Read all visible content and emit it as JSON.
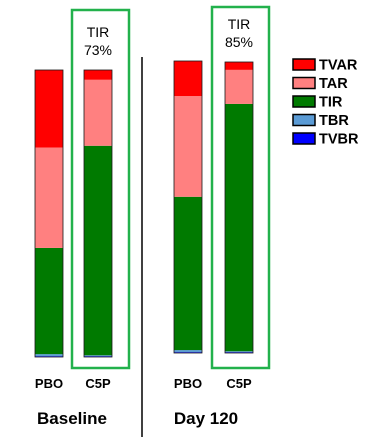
{
  "chart_data": {
    "type": "bar",
    "stacked": true,
    "title": "",
    "xlabel": "",
    "ylabel": "",
    "ylim": [
      0,
      100
    ],
    "grid": false,
    "legend_position": "right",
    "groups": [
      {
        "label": "Baseline",
        "categories": [
          "PBO",
          "C5P"
        ]
      },
      {
        "label": "Day 120",
        "categories": [
          "PBO",
          "C5P"
        ]
      }
    ],
    "bar_labels": [
      "PBO",
      "C5P",
      "PBO",
      "C5P"
    ],
    "series": [
      {
        "name": "TVBR",
        "color": "#0000ff",
        "values": [
          0.3,
          0.3,
          0.3,
          0.3
        ]
      },
      {
        "name": "TBR",
        "color": "#5b9bd5",
        "values": [
          0.7,
          0.3,
          0.7,
          0.3
        ]
      },
      {
        "name": "TIR",
        "color": "#007a00",
        "values": [
          37.0,
          73.0,
          52.5,
          85.0
        ]
      },
      {
        "name": "TAR",
        "color": "#ff8080",
        "values": [
          35.0,
          23.0,
          34.5,
          11.7
        ]
      },
      {
        "name": "TVAR",
        "color": "#ff0000",
        "values": [
          27.0,
          3.4,
          12.0,
          2.7
        ]
      }
    ],
    "legend_order": [
      "TVAR",
      "TAR",
      "TIR",
      "TBR",
      "TVBR"
    ],
    "annotations": [
      {
        "bar_index": 1,
        "label": "TIR",
        "value": "73%"
      },
      {
        "bar_index": 3,
        "label": "TIR",
        "value": "85%"
      }
    ],
    "highlight_color": "#22b14c"
  }
}
